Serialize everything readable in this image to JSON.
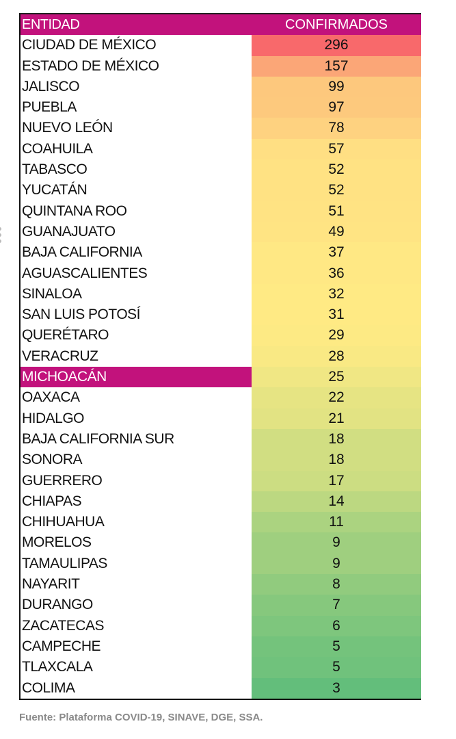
{
  "table": {
    "headers": [
      "ENTIDAD",
      "CONFIRMADOS"
    ],
    "highlighted": "MICHOACÁN",
    "header_color": "#c2127c",
    "rows": [
      {
        "entidad": "CIUDAD DE MÉXICO",
        "confirmados": "296",
        "color": "#f8696b"
      },
      {
        "entidad": "ESTADO DE MÉXICO",
        "confirmados": "157",
        "color": "#fba677"
      },
      {
        "entidad": "JALISCO",
        "confirmados": "99",
        "color": "#fdc87d"
      },
      {
        "entidad": "PUEBLA",
        "confirmados": "97",
        "color": "#fdc97d"
      },
      {
        "entidad": "NUEVO LEÓN",
        "confirmados": "78",
        "color": "#fed280"
      },
      {
        "entidad": "COAHUILA",
        "confirmados": "57",
        "color": "#ffdf83"
      },
      {
        "entidad": "TABASCO",
        "confirmados": "52",
        "color": "#ffe283"
      },
      {
        "entidad": "YUCATÁN",
        "confirmados": "52",
        "color": "#ffe283"
      },
      {
        "entidad": "QUINTANA ROO",
        "confirmados": "51",
        "color": "#ffe383"
      },
      {
        "entidad": "GUANAJUATO",
        "confirmados": "49",
        "color": "#ffe483"
      },
      {
        "entidad": "BAJA CALIFORNIA",
        "confirmados": "37",
        "color": "#ffe884"
      },
      {
        "entidad": "AGUASCALIENTES",
        "confirmados": "36",
        "color": "#ffe884"
      },
      {
        "entidad": "SINALOA",
        "confirmados": "32",
        "color": "#ffea84"
      },
      {
        "entidad": "SAN LUIS POTOSÍ",
        "confirmados": "31",
        "color": "#ffea84"
      },
      {
        "entidad": "QUERÉTARO",
        "confirmados": "29",
        "color": "#fdea84"
      },
      {
        "entidad": "VERACRUZ",
        "confirmados": "28",
        "color": "#f9e984"
      },
      {
        "entidad": "MICHOACÁN",
        "confirmados": "25",
        "color": "#f0e784"
      },
      {
        "entidad": "OAXACA",
        "confirmados": "22",
        "color": "#e6e483"
      },
      {
        "entidad": "HIDALGO",
        "confirmados": "21",
        "color": "#e2e383"
      },
      {
        "entidad": "BAJA CALIFORNIA SUR",
        "confirmados": "18",
        "color": "#d1de82"
      },
      {
        "entidad": "SONORA",
        "confirmados": "18",
        "color": "#d1de82"
      },
      {
        "entidad": "GUERRERO",
        "confirmados": "17",
        "color": "#ccdd82"
      },
      {
        "entidad": "CHIAPAS",
        "confirmados": "14",
        "color": "#bcd881"
      },
      {
        "entidad": "CHIHUAHUA",
        "confirmados": "11",
        "color": "#abd380"
      },
      {
        "entidad": "MORELOS",
        "confirmados": "9",
        "color": "#9fcf7f"
      },
      {
        "entidad": "TAMAULIPAS",
        "confirmados": "9",
        "color": "#9fcf7f"
      },
      {
        "entidad": "NAYARIT",
        "confirmados": "8",
        "color": "#91cb7e"
      },
      {
        "entidad": "DURANGO",
        "confirmados": "7",
        "color": "#86c87d"
      },
      {
        "entidad": "ZACATECAS",
        "confirmados": "6",
        "color": "#7ec67d"
      },
      {
        "entidad": "CAMPECHE",
        "confirmados": "5",
        "color": "#74c37c"
      },
      {
        "entidad": "TLAXCALA",
        "confirmados": "5",
        "color": "#70c27c"
      },
      {
        "entidad": "COLIMA",
        "confirmados": "3",
        "color": "#63be7b"
      }
    ]
  },
  "source": "Fuente: Plataforma COVID-19, SINAVE, DGE, SSA."
}
